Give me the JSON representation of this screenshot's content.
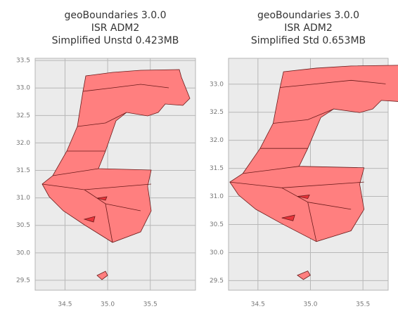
{
  "chart_data": [
    {
      "type": "map",
      "title": [
        "geoBoundaries 3.0.0",
        "ISR ADM2",
        "Simplified Unstd 0.423MB"
      ],
      "xlim": [
        34.15,
        36.03
      ],
      "ylim": [
        29.32,
        33.54
      ],
      "xticks": [
        34.5,
        {
          "value": 35,
          "label": "35.0"
        },
        35.5
      ],
      "yticks": [
        29.5,
        {
          "value": 30,
          "label": "30.0"
        },
        30.5,
        {
          "value": 31,
          "label": "31.0"
        },
        31.5,
        {
          "value": 32,
          "label": "32.0"
        },
        32.5,
        {
          "value": 33,
          "label": "33.0"
        },
        33.5
      ],
      "grid": true,
      "color": "#ff7f7f"
    },
    {
      "type": "map",
      "title": [
        "geoBoundaries 3.0.0",
        "ISR ADM2",
        "Simplified Std 0.653MB"
      ],
      "xlim": [
        34.22,
        35.74
      ],
      "ylim": [
        29.33,
        33.46
      ],
      "xticks": [
        34.5,
        {
          "value": 35,
          "label": "35.0"
        },
        35.5
      ],
      "yticks": [
        29.5,
        {
          "value": 30,
          "label": "30.0"
        },
        30.5,
        {
          "value": 31,
          "label": "31.0"
        },
        31.5,
        {
          "value": 32,
          "label": "32.0"
        },
        32.5,
        {
          "value": 33,
          "label": "33.0"
        }
      ],
      "grid": true,
      "color": "#ff7f7f"
    }
  ]
}
